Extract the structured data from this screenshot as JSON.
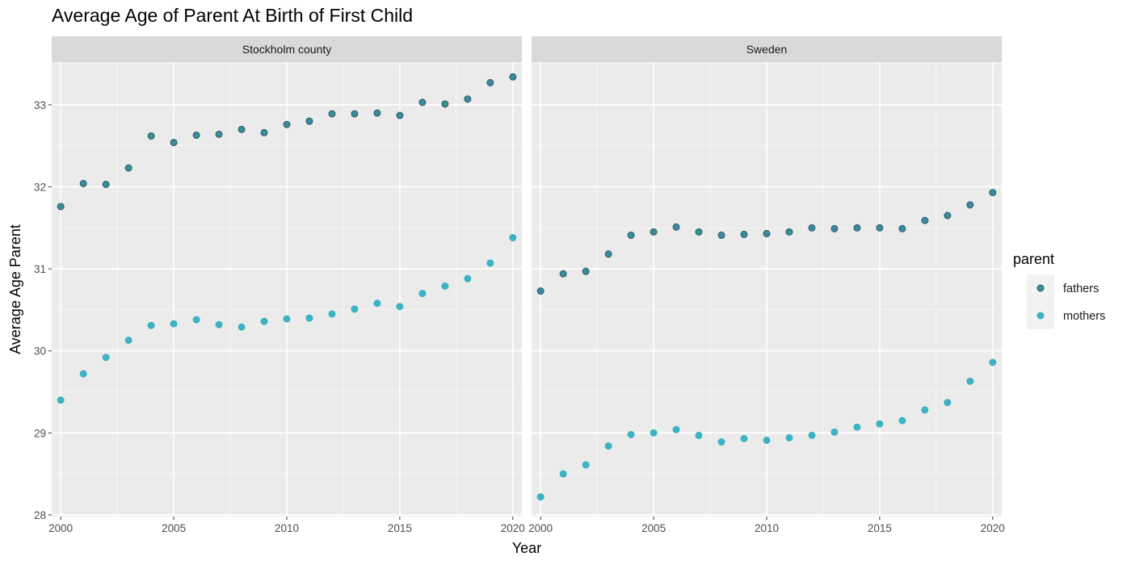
{
  "chart_data": {
    "type": "scatter",
    "title": "Average Age of Parent At Birth of First Child",
    "xlabel": "Year",
    "ylabel": "Average Age Parent",
    "xlim": [
      1999.6,
      2020.4
    ],
    "ylim": [
      27.98,
      33.52
    ],
    "x_ticks": [
      2000,
      2005,
      2010,
      2015,
      2020
    ],
    "y_ticks": [
      28,
      29,
      30,
      31,
      32,
      33
    ],
    "grid": true,
    "legend": {
      "title": "parent",
      "position": "right",
      "entries": [
        {
          "name": "fathers",
          "color": "#3a8c9c",
          "stroke": "#2c5f68"
        },
        {
          "name": "mothers",
          "color": "#3bb3c3",
          "stroke": "#3bb3c3"
        }
      ]
    },
    "x": [
      2000,
      2001,
      2002,
      2003,
      2004,
      2005,
      2006,
      2007,
      2008,
      2009,
      2010,
      2011,
      2012,
      2013,
      2014,
      2015,
      2016,
      2017,
      2018,
      2019,
      2020
    ],
    "facets": [
      {
        "label": "Stockholm county",
        "series": [
          {
            "name": "fathers",
            "values": [
              31.76,
              32.04,
              32.03,
              32.23,
              32.62,
              32.54,
              32.63,
              32.64,
              32.7,
              32.66,
              32.76,
              32.8,
              32.89,
              32.89,
              32.9,
              32.87,
              33.03,
              33.01,
              33.07,
              33.27,
              33.34
            ]
          },
          {
            "name": "mothers",
            "values": [
              29.4,
              29.72,
              29.92,
              30.13,
              30.31,
              30.33,
              30.38,
              30.32,
              30.29,
              30.36,
              30.39,
              30.4,
              30.45,
              30.51,
              30.58,
              30.54,
              30.7,
              30.79,
              30.88,
              31.07,
              31.38
            ]
          }
        ]
      },
      {
        "label": "Sweden",
        "series": [
          {
            "name": "fathers",
            "values": [
              30.73,
              30.94,
              30.97,
              31.18,
              31.41,
              31.45,
              31.51,
              31.45,
              31.41,
              31.42,
              31.43,
              31.45,
              31.5,
              31.49,
              31.5,
              31.5,
              31.49,
              31.59,
              31.65,
              31.78,
              31.93
            ]
          },
          {
            "name": "mothers",
            "values": [
              28.22,
              28.5,
              28.61,
              28.84,
              28.98,
              29.0,
              29.04,
              28.97,
              28.89,
              28.93,
              28.91,
              28.94,
              28.97,
              29.01,
              29.07,
              29.11,
              29.15,
              29.28,
              29.37,
              29.63,
              29.86
            ]
          }
        ]
      }
    ]
  }
}
